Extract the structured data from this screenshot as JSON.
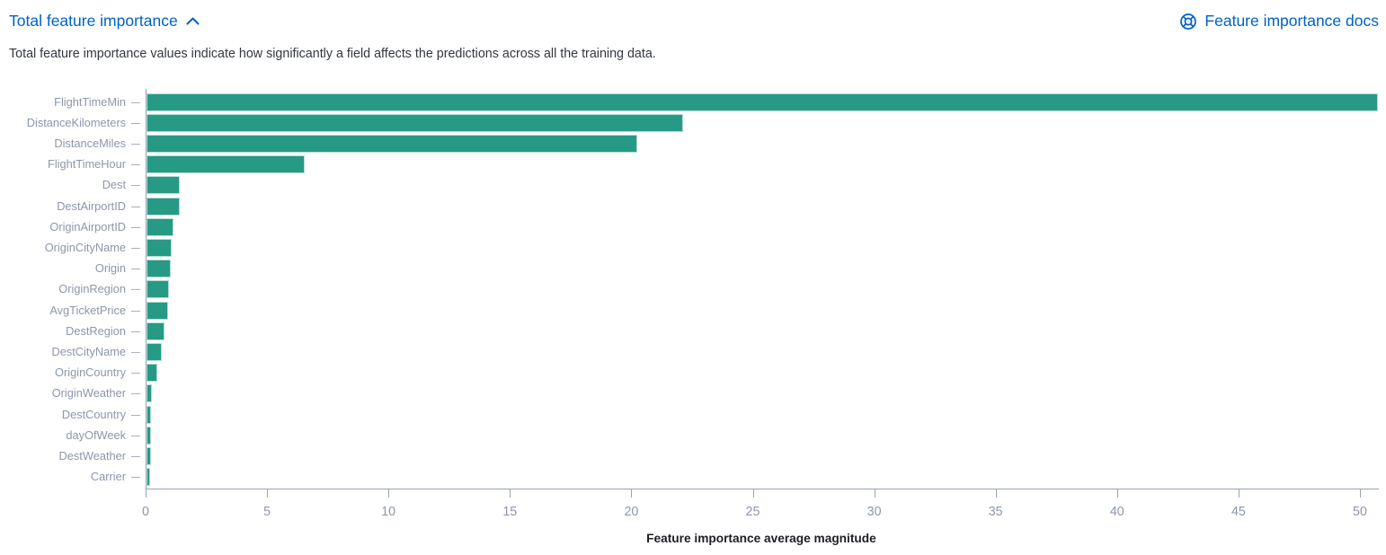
{
  "header": {
    "title": "Total feature importance",
    "collapse_icon": "chevron-up-icon",
    "docs_label": "Feature importance docs",
    "docs_icon": "lifebuoy-help-icon",
    "link_color": "#0061c5"
  },
  "description": {
    "text": "Total feature importance values indicate how significantly a field affects the predictions across all the training data."
  },
  "chart_data": {
    "type": "bar",
    "orientation": "horizontal",
    "title": "",
    "xlabel": "Feature importance average magnitude",
    "ylabel": "",
    "xlim": [
      0,
      51
    ],
    "xticks": [
      0,
      5,
      10,
      15,
      20,
      25,
      30,
      35,
      40,
      45,
      50
    ],
    "grid": "off",
    "legend": "none",
    "bar_color": "#269a84",
    "axis_label_color": "#8d96ab",
    "axis_line_color": "#9aa3b5",
    "categories": [
      "FlightTimeMin",
      "DistanceKilometers",
      "DistanceMiles",
      "FlightTimeHour",
      "Dest",
      "DestAirportID",
      "OriginAirportID",
      "OriginCityName",
      "Origin",
      "OriginRegion",
      "AvgTicketPrice",
      "DestRegion",
      "DestCityName",
      "OriginCountry",
      "OriginWeather",
      "DestCountry",
      "dayOfWeek",
      "DestWeather",
      "Carrier"
    ],
    "values": [
      50.7,
      22.1,
      20.2,
      6.5,
      1.38,
      1.36,
      1.11,
      1.02,
      1.0,
      0.93,
      0.89,
      0.75,
      0.64,
      0.45,
      0.23,
      0.2,
      0.19,
      0.17,
      0.15
    ]
  }
}
